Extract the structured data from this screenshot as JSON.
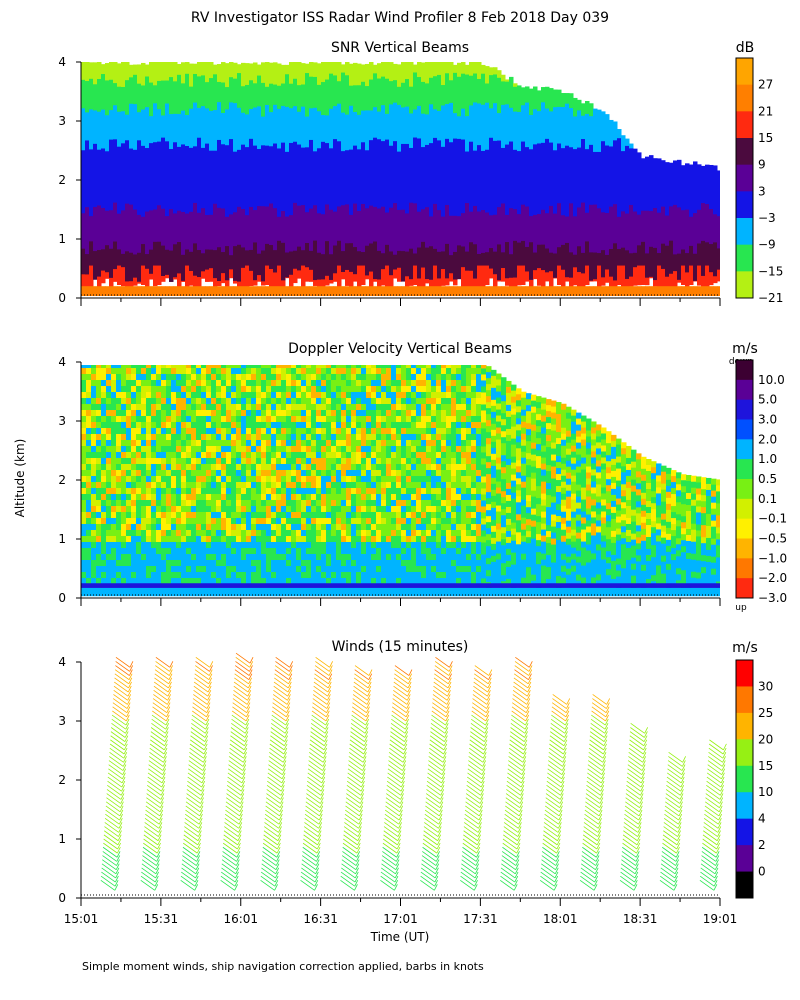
{
  "figure": {
    "title": "RV Investigator ISS Radar Wind Profiler   8 Feb 2018 Day 039",
    "y_label": "Altitude (km)",
    "x_label": "Time (UT)",
    "footnote": "Simple moment winds, ship navigation correction applied, barbs in knots"
  },
  "chart_data": [
    {
      "type": "heatmap",
      "title": "SNR Vertical Beams",
      "colorbar_unit": "dB",
      "colorbar_ticks": [
        "27",
        "21",
        "15",
        "9",
        "3",
        "−3",
        "−9",
        "−15",
        "−21"
      ],
      "colorbar_colors": [
        "#ffa500",
        "#ff7f00",
        "#ff2a10",
        "#4b0a3e",
        "#5a0096",
        "#1414e6",
        "#00b4ff",
        "#28e650",
        "#b4f014"
      ],
      "y_ticks": [
        "0",
        "1",
        "2",
        "3",
        "4"
      ],
      "ylim": [
        0,
        4.0
      ],
      "xlim": [
        "15:01",
        "19:01"
      ],
      "top_of_data_km": [
        {
          "x": "15:01",
          "y": 4.0
        },
        {
          "x": "17:31",
          "y": 4.0
        },
        {
          "x": "17:46",
          "y": 3.6
        },
        {
          "x": "18:01",
          "y": 3.5
        },
        {
          "x": "18:16",
          "y": 3.2
        },
        {
          "x": "18:31",
          "y": 2.4
        },
        {
          "x": "18:46",
          "y": 2.3
        },
        {
          "x": "19:01",
          "y": 2.2
        }
      ],
      "layers_km": [
        {
          "label": "−21",
          "bottom": 3.7
        },
        {
          "label": "−15",
          "bottom": 3.2
        },
        {
          "label": "−9",
          "bottom": 2.6
        },
        {
          "label": "−3",
          "bottom": 1.5
        },
        {
          "label": "3",
          "bottom": 0.85
        },
        {
          "label": "9",
          "bottom": 0.4
        },
        {
          "label": "15",
          "bottom": 0.22
        }
      ]
    },
    {
      "type": "heatmap",
      "title": "Doppler Velocity Vertical Beams",
      "colorbar_unit": "m/s",
      "colorbar_top_label": "down",
      "colorbar_bottom_label": "up",
      "colorbar_ticks": [
        "10.0",
        "5.0",
        "3.0",
        "2.0",
        "1.0",
        "0.5",
        "0.1",
        "−0.1",
        "−0.5",
        "−1.0",
        "−2.0",
        "−3.0"
      ],
      "colorbar_colors": [
        "#3c0032",
        "#5a0096",
        "#1e14dc",
        "#0050ff",
        "#00b4ff",
        "#28e650",
        "#78f014",
        "#d2f000",
        "#fff000",
        "#ffb400",
        "#ff7800",
        "#ff2a10"
      ],
      "y_ticks": [
        "0",
        "1",
        "2",
        "3",
        "4"
      ],
      "ylim": [
        0,
        4.0
      ],
      "xlim": [
        "15:01",
        "19:01"
      ]
    },
    {
      "type": "scatter",
      "title": "Winds (15 minutes)",
      "colorbar_unit": "m/s",
      "colorbar_ticks": [
        "30",
        "25",
        "20",
        "15",
        "10",
        "4",
        "2",
        "0"
      ],
      "colorbar_colors": [
        "#ff0000",
        "#ff7800",
        "#ffb400",
        "#96f014",
        "#28e650",
        "#00b4ff",
        "#1414e6",
        "#5a0096",
        "#000000"
      ],
      "y_ticks": [
        "0",
        "1",
        "2",
        "3",
        "4"
      ],
      "x_ticks": [
        "15:01",
        "15:31",
        "16:01",
        "16:31",
        "17:01",
        "17:31",
        "18:01",
        "18:31",
        "19:01"
      ],
      "ylim": [
        0,
        4.0
      ],
      "profiles": [
        {
          "time": "15:08",
          "top_km": 4.1
        },
        {
          "time": "15:23",
          "top_km": 4.1
        },
        {
          "time": "15:38",
          "top_km": 4.1
        },
        {
          "time": "15:53",
          "top_km": 4.2
        },
        {
          "time": "16:08",
          "top_km": 4.1
        },
        {
          "time": "16:23",
          "top_km": 4.1
        },
        {
          "time": "16:38",
          "top_km": 4.0
        },
        {
          "time": "16:53",
          "top_km": 4.0
        },
        {
          "time": "17:08",
          "top_km": 4.1
        },
        {
          "time": "17:23",
          "top_km": 4.0
        },
        {
          "time": "17:38",
          "top_km": 4.1
        },
        {
          "time": "17:53",
          "top_km": 3.5
        },
        {
          "time": "18:08",
          "top_km": 3.5
        },
        {
          "time": "18:23",
          "top_km": 3.0
        },
        {
          "time": "18:38",
          "top_km": 2.5
        },
        {
          "time": "18:53",
          "top_km": 2.7
        }
      ]
    }
  ]
}
